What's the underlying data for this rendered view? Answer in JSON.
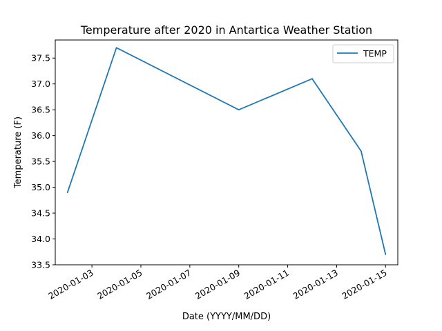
{
  "chart_data": {
    "type": "line",
    "title": "Temperature after 2020 in Antartica Weather Station",
    "xlabel": "Date (YYYY/MM/DD)",
    "ylabel": "Temperature (F)",
    "x": [
      "2020-01-02",
      "2020-01-04",
      "2020-01-09",
      "2020-01-12",
      "2020-01-14",
      "2020-01-15"
    ],
    "series": [
      {
        "name": "TEMP",
        "values": [
          34.9,
          37.7,
          36.5,
          37.1,
          35.7,
          33.7
        ],
        "color": "#1f77b4"
      }
    ],
    "xlim": [
      "2020-01-01 12:00",
      "2020-01-15 12:00"
    ],
    "ylim": [
      33.5,
      37.85
    ],
    "x_ticks": [
      "2020-01-03",
      "2020-01-05",
      "2020-01-07",
      "2020-01-09",
      "2020-01-11",
      "2020-01-13",
      "2020-01-15"
    ],
    "y_ticks": [
      33.5,
      34.0,
      34.5,
      35.0,
      35.5,
      36.0,
      36.5,
      37.0,
      37.5
    ],
    "y_tick_labels": [
      "33.5",
      "34.0",
      "34.5",
      "35.0",
      "35.5",
      "36.0",
      "36.5",
      "37.0",
      "37.5"
    ],
    "grid": false,
    "legend": "top-right"
  }
}
